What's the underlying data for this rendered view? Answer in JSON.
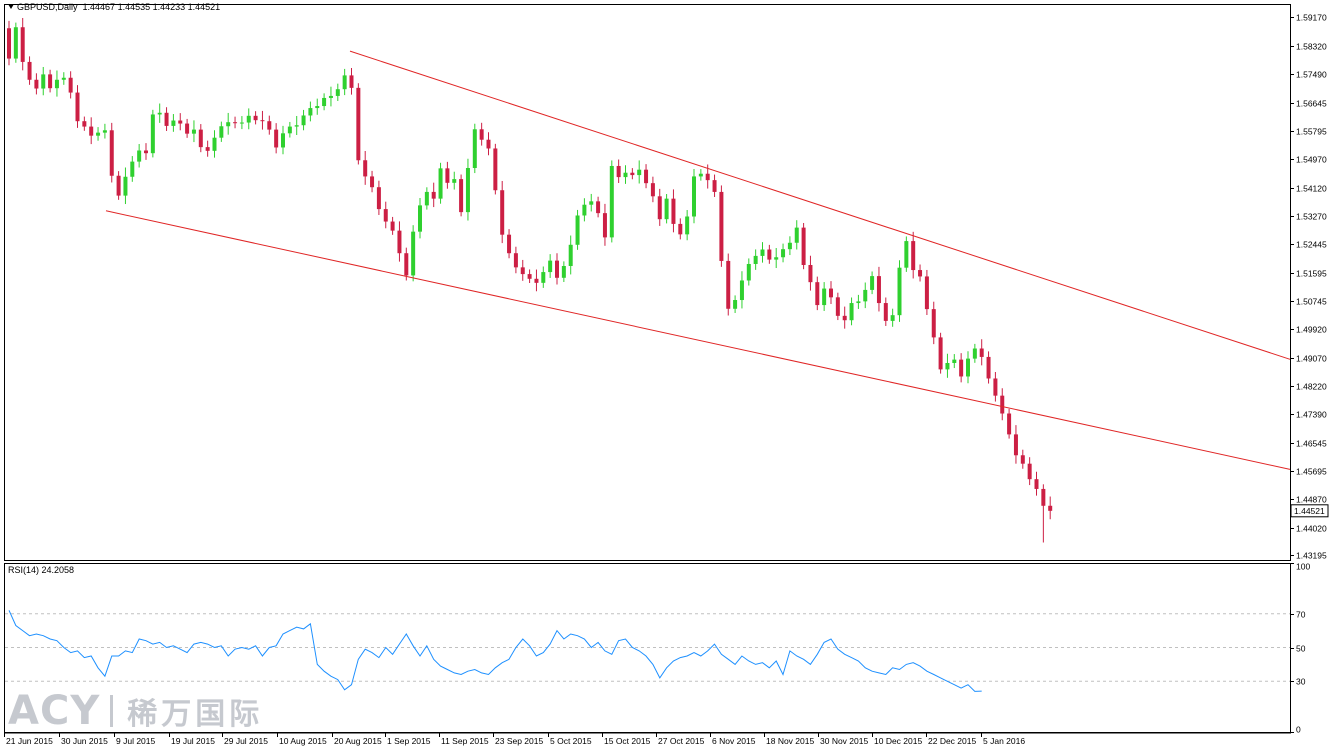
{
  "header": {
    "symbol": "GBPUSD,Daily",
    "ohlc": "1.44467 1.44535 1.44233 1.44521"
  },
  "rsi_header": "RSI(14) 24.2058",
  "watermark": {
    "latin": "ACY",
    "cjk": "稀万国际"
  },
  "colors": {
    "bull": "#2fd02f",
    "bear": "#cc1f44",
    "channel": "#e02626",
    "rsi_line": "#1e90ff",
    "grid": "#c0c0c0"
  },
  "chart_data": [
    {
      "type": "candlestick",
      "title": "GBPUSD,Daily",
      "y_ticks": [
        1.5917,
        1.5832,
        1.5749,
        1.56645,
        1.55795,
        1.5497,
        1.5412,
        1.5327,
        1.52445,
        1.51595,
        1.50745,
        1.4992,
        1.4907,
        1.4822,
        1.4739,
        1.46545,
        1.45695,
        1.4487,
        1.4402,
        1.43195
      ],
      "y_tick_labels": [
        "1.59170",
        "1.58320",
        "1.57490",
        "1.56645",
        "1.55795",
        "1.54970",
        "1.54120",
        "1.53270",
        "1.52445",
        "1.51595",
        "1.50745",
        "1.49920",
        "1.49070",
        "1.48220",
        "1.47390",
        "1.46545",
        "1.45695",
        "1.44870",
        "1.44020",
        "1.43195"
      ],
      "ylim": [
        1.4306,
        1.5957
      ],
      "x_tick_labels": [
        "21 Jun 2015",
        "30 Jun 2015",
        "9 Jul 2015",
        "19 Jul 2015",
        "29 Jul 2015",
        "10 Aug 2015",
        "20 Aug 2015",
        "1 Sep 2015",
        "11 Sep 2015",
        "23 Sep 2015",
        "5 Oct 2015",
        "15 Oct 2015",
        "27 Oct 2015",
        "6 Nov 2015",
        "18 Nov 2015",
        "30 Nov 2015",
        "10 Dec 2015",
        "22 Dec 2015",
        "5 Jan 2016"
      ],
      "current_price": "1.44521",
      "closes": [
        1.5795,
        1.5888,
        1.5785,
        1.5732,
        1.5706,
        1.5748,
        1.5707,
        1.5732,
        1.5738,
        1.5694,
        1.5609,
        1.5593,
        1.5566,
        1.5575,
        1.5582,
        1.5447,
        1.5388,
        1.5444,
        1.5489,
        1.5522,
        1.5514,
        1.5629,
        1.5634,
        1.5595,
        1.5611,
        1.5602,
        1.5572,
        1.5584,
        1.5532,
        1.5521,
        1.556,
        1.5594,
        1.5606,
        1.5603,
        1.5605,
        1.5625,
        1.5612,
        1.5609,
        1.5584,
        1.5531,
        1.5573,
        1.5593,
        1.5597,
        1.5626,
        1.5648,
        1.5654,
        1.5678,
        1.5684,
        1.5704,
        1.5745,
        1.5708,
        1.5493,
        1.5445,
        1.5413,
        1.5348,
        1.5311,
        1.5284,
        1.5217,
        1.5151,
        1.5281,
        1.5359,
        1.5399,
        1.5379,
        1.5469,
        1.5426,
        1.5437,
        1.5339,
        1.547,
        1.5585,
        1.5554,
        1.5528,
        1.5404,
        1.5272,
        1.5217,
        1.5175,
        1.5155,
        1.5141,
        1.5129,
        1.5161,
        1.5195,
        1.5144,
        1.5179,
        1.5242,
        1.5329,
        1.5361,
        1.5371,
        1.5336,
        1.5264,
        1.5476,
        1.5443,
        1.5456,
        1.5449,
        1.5465,
        1.5425,
        1.5386,
        1.5318,
        1.5379,
        1.5304,
        1.5273,
        1.5326,
        1.5445,
        1.5453,
        1.5434,
        1.5399,
        1.5194,
        1.5052,
        1.5078,
        1.5136,
        1.5185,
        1.5209,
        1.5228,
        1.5198,
        1.5205,
        1.5229,
        1.5248,
        1.5293,
        1.5182,
        1.5131,
        1.5063,
        1.5112,
        1.5086,
        1.5031,
        1.5018,
        1.5069,
        1.5074,
        1.5108,
        1.5149,
        1.5069,
        1.5016,
        1.5033,
        1.5174,
        1.5253,
        1.5167,
        1.5148,
        1.5051,
        1.4967,
        1.4872,
        1.4891,
        1.4901,
        1.4851,
        1.4904,
        1.4934,
        1.4909,
        1.4845,
        1.4794,
        1.4741,
        1.4679,
        1.4617,
        1.4592,
        1.4546,
        1.4517,
        1.4467,
        1.4452
      ]
    },
    {
      "type": "line",
      "title": "RSI(14) 24.2058",
      "y_ticks": [
        100,
        70,
        50,
        30,
        0
      ],
      "ylim": [
        0,
        100
      ],
      "levels": [
        70,
        50,
        30
      ],
      "values": [
        72,
        63,
        60,
        57,
        58,
        57,
        55,
        54,
        50,
        47,
        48,
        44,
        45,
        38,
        33,
        45,
        45,
        48,
        47,
        55,
        54,
        52,
        53,
        50,
        51,
        49,
        47,
        52,
        53,
        52,
        50,
        51,
        45,
        49,
        50,
        49,
        51,
        45,
        50,
        51,
        58,
        60,
        62,
        61,
        64,
        40,
        36,
        33,
        31,
        25,
        28,
        43,
        49,
        47,
        44,
        50,
        46,
        52,
        58,
        51,
        45,
        51,
        43,
        39,
        37,
        35,
        34,
        36,
        37,
        35,
        34,
        38,
        41,
        43,
        50,
        55,
        51,
        45,
        47,
        52,
        60,
        55,
        58,
        57,
        55,
        50,
        53,
        48,
        46,
        54,
        55,
        50,
        48,
        45,
        40,
        32,
        38,
        42,
        44,
        45,
        47,
        45,
        48,
        52,
        46,
        43,
        40,
        45,
        42,
        40,
        41,
        38,
        42,
        34,
        48,
        45,
        43,
        40,
        46,
        53,
        55,
        49,
        46,
        44,
        42,
        38,
        36,
        35,
        34,
        38,
        37,
        40,
        41,
        39,
        36,
        34,
        32,
        30,
        28,
        26,
        28,
        24,
        24.2
      ]
    }
  ]
}
